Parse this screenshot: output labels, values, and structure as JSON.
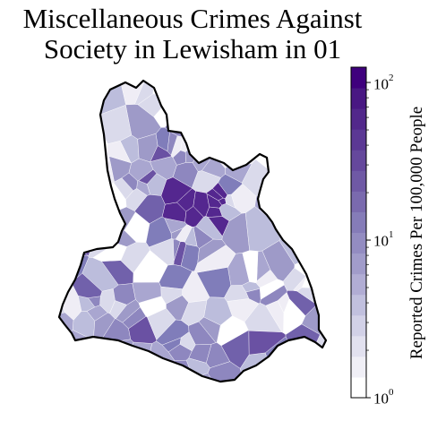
{
  "title": {
    "line1": "Miscellaneous Crimes Against",
    "line2": "Society in Lewisham in 01"
  },
  "colorbar": {
    "label": "Reported Crimes Per 100,000 People",
    "scale": "log",
    "range": [
      1,
      125
    ],
    "ticks": [
      {
        "base": "10",
        "exp": "2",
        "value": 100
      },
      {
        "base": "10",
        "exp": "1",
        "value": 10
      },
      {
        "base": "10",
        "exp": "0",
        "value": 1
      }
    ],
    "colors": [
      "#ffffff",
      "#f0eff6",
      "#e2e1ef",
      "#d2d1e7",
      "#c1c0de",
      "#b1add4",
      "#a19cca",
      "#938cc1",
      "#857cb8",
      "#7a6aae",
      "#6f59a5",
      "#65489c",
      "#5b3894",
      "#52288b",
      "#491883",
      "#3f007d"
    ]
  },
  "map": {
    "region": "Lewisham",
    "fill_colors": [
      "#ffffff",
      "#efedf5",
      "#dadaeb",
      "#bcbddc",
      "#a9a6d0",
      "#9e9ac8",
      "#8e87bf",
      "#807dba",
      "#7161ab",
      "#6a51a3",
      "#54278f"
    ],
    "outline_color": "#000000"
  }
}
